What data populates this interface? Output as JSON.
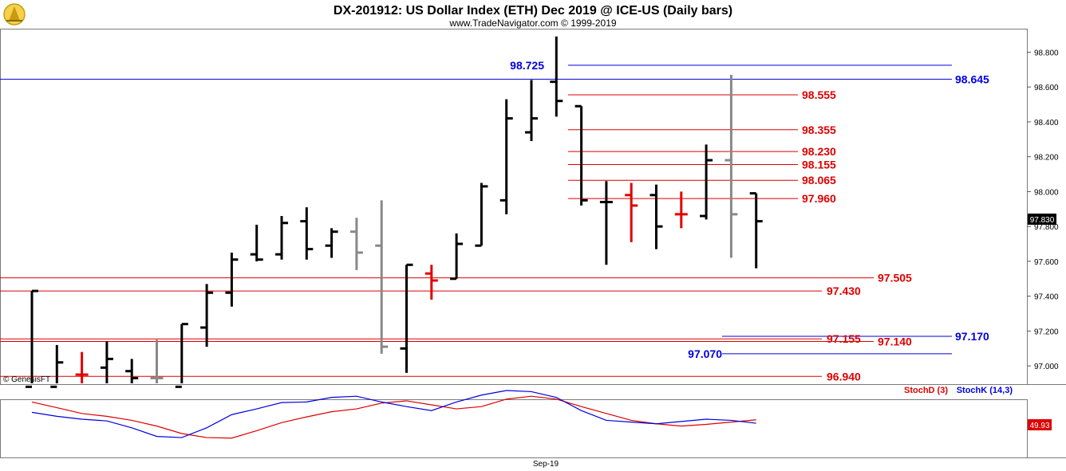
{
  "header": {
    "title": "DX-201912:  US Dollar Index (ETH) Dec 2019 @ ICE-US  (Daily bars)",
    "subtitle": "www.TradeNavigator.com © 1999-2019",
    "copyright": "© GenesisFT",
    "logo_icon": "trade-navigator-logo-icon"
  },
  "chart_data": [
    {
      "type": "ohlc",
      "title": "DX-201912:  US Dollar Index (ETH) Dec 2019 @ ICE-US  (Daily bars)",
      "y_ticks": [
        "97.000",
        "97.200",
        "97.400",
        "97.600",
        "97.800",
        "98.000",
        "98.200",
        "98.400",
        "98.600",
        "98.800"
      ],
      "ylim": [
        96.9,
        98.93
      ],
      "last_price": "97.830",
      "x_label": "Sep-19",
      "bar_colors": {
        "black": "#000000",
        "red": "#e00000",
        "gray": "#888888",
        "green": "#33cc33"
      },
      "bars": [
        {
          "o": 96.88,
          "h": 97.43,
          "l": 96.88,
          "c": 97.43,
          "color": "black"
        },
        {
          "o": 96.88,
          "h": 97.12,
          "l": 96.88,
          "c": 97.02,
          "color": "black"
        },
        {
          "o": 96.95,
          "h": 97.08,
          "l": 96.9,
          "c": 96.95,
          "color": "red"
        },
        {
          "o": 96.99,
          "h": 97.14,
          "l": 96.88,
          "c": 97.04,
          "color": "black"
        },
        {
          "o": 96.97,
          "h": 97.04,
          "l": 96.9,
          "c": 96.93,
          "color": "black"
        },
        {
          "o": 96.93,
          "h": 97.15,
          "l": 96.9,
          "c": 96.93,
          "color": "gray"
        },
        {
          "o": 96.88,
          "h": 97.24,
          "l": 96.88,
          "c": 97.24,
          "color": "black"
        },
        {
          "o": 97.22,
          "h": 97.47,
          "l": 97.11,
          "c": 97.42,
          "color": "black"
        },
        {
          "o": 97.42,
          "h": 97.65,
          "l": 97.34,
          "c": 97.61,
          "color": "black"
        },
        {
          "o": 97.64,
          "h": 97.81,
          "l": 97.6,
          "c": 97.61,
          "color": "black"
        },
        {
          "o": 97.64,
          "h": 97.86,
          "l": 97.61,
          "c": 97.82,
          "color": "black"
        },
        {
          "o": 97.83,
          "h": 97.91,
          "l": 97.61,
          "c": 97.67,
          "color": "black"
        },
        {
          "o": 97.69,
          "h": 97.79,
          "l": 97.62,
          "c": 97.77,
          "color": "black"
        },
        {
          "o": 97.77,
          "h": 97.85,
          "l": 97.55,
          "c": 97.65,
          "color": "gray"
        },
        {
          "o": 97.69,
          "h": 97.95,
          "l": 97.07,
          "c": 97.11,
          "color": "gray"
        },
        {
          "o": 97.1,
          "h": 97.58,
          "l": 96.96,
          "c": 97.58,
          "color": "black"
        },
        {
          "o": 97.53,
          "h": 97.58,
          "l": 97.38,
          "c": 97.49,
          "color": "red"
        },
        {
          "o": 97.5,
          "h": 97.76,
          "l": 97.5,
          "c": 97.7,
          "color": "black"
        },
        {
          "o": 97.69,
          "h": 98.05,
          "l": 97.69,
          "c": 98.03,
          "color": "black"
        },
        {
          "o": 97.95,
          "h": 98.53,
          "l": 97.87,
          "c": 98.42,
          "color": "black"
        },
        {
          "o": 98.34,
          "h": 98.64,
          "l": 98.29,
          "c": 98.42,
          "color": "black"
        },
        {
          "o": 98.63,
          "h": 98.89,
          "l": 98.43,
          "c": 98.52,
          "color": "black"
        },
        {
          "o": 98.49,
          "h": 98.49,
          "l": 97.92,
          "c": 97.95,
          "color": "black"
        },
        {
          "o": 97.94,
          "h": 98.06,
          "l": 97.58,
          "c": 97.94,
          "color": "black"
        },
        {
          "o": 97.98,
          "h": 98.05,
          "l": 97.71,
          "c": 97.92,
          "color": "red"
        },
        {
          "o": 97.98,
          "h": 98.04,
          "l": 97.67,
          "c": 97.8,
          "color": "black"
        },
        {
          "o": 97.87,
          "h": 98.0,
          "l": 97.79,
          "c": 97.87,
          "color": "red"
        },
        {
          "o": 97.86,
          "h": 98.27,
          "l": 97.84,
          "c": 98.18,
          "color": "black"
        },
        {
          "o": 98.18,
          "h": 98.67,
          "l": 97.62,
          "c": 97.87,
          "color": "gray"
        },
        {
          "o": 97.99,
          "h": 97.99,
          "l": 97.56,
          "c": 97.83,
          "color": "black"
        }
      ],
      "levels": [
        {
          "value": 98.725,
          "label": "98.725",
          "color": "#0000dd",
          "side": "left"
        },
        {
          "value": 98.645,
          "label": "98.645",
          "color": "#0000dd",
          "side": "right"
        },
        {
          "value": 98.555,
          "label": "98.555",
          "color": "#dd0000",
          "side": "mid"
        },
        {
          "value": 98.355,
          "label": "98.355",
          "color": "#dd0000",
          "side": "mid"
        },
        {
          "value": 98.23,
          "label": "98.230",
          "color": "#dd0000",
          "side": "mid"
        },
        {
          "value": 98.155,
          "label": "98.155",
          "color": "#dd0000",
          "side": "mid"
        },
        {
          "value": 98.065,
          "label": "98.065",
          "color": "#dd0000",
          "side": "mid"
        },
        {
          "value": 97.96,
          "label": "97.960",
          "color": "#dd0000",
          "side": "mid"
        },
        {
          "value": 97.505,
          "label": "97.505",
          "color": "#dd0000",
          "side": "right2"
        },
        {
          "value": 97.43,
          "label": "97.430",
          "color": "#dd0000",
          "side": "right1"
        },
        {
          "value": 97.17,
          "label": "97.170",
          "color": "#0000dd",
          "side": "right"
        },
        {
          "value": 97.155,
          "label": "97.155",
          "color": "#dd0000",
          "side": "right1"
        },
        {
          "value": 97.14,
          "label": "97.140",
          "color": "#dd0000",
          "side": "right2"
        },
        {
          "value": 97.07,
          "label": "97.070",
          "color": "#0000dd",
          "side": "left"
        },
        {
          "value": 96.94,
          "label": "96.940",
          "color": "#dd0000",
          "side": "right1"
        }
      ]
    },
    {
      "type": "line",
      "title": "Stochastic",
      "last_value": "49.93",
      "ylim": [
        0,
        100
      ],
      "series": [
        {
          "name": "StochD (3)",
          "color": "#dd0000",
          "values": [
            80,
            70,
            60,
            55,
            48,
            38,
            25,
            18,
            17,
            30,
            44,
            54,
            63,
            68,
            78,
            82,
            75,
            68,
            72,
            85,
            90,
            85,
            72,
            60,
            48,
            42,
            38,
            41,
            45,
            49
          ]
        },
        {
          "name": "StochK (14,3)",
          "color": "#0000dd",
          "values": [
            62,
            55,
            50,
            47,
            35,
            20,
            18,
            35,
            58,
            68,
            79,
            80,
            88,
            90,
            80,
            72,
            65,
            80,
            92,
            100,
            98,
            88,
            65,
            48,
            45,
            42,
            46,
            50,
            48,
            43
          ]
        }
      ]
    }
  ]
}
